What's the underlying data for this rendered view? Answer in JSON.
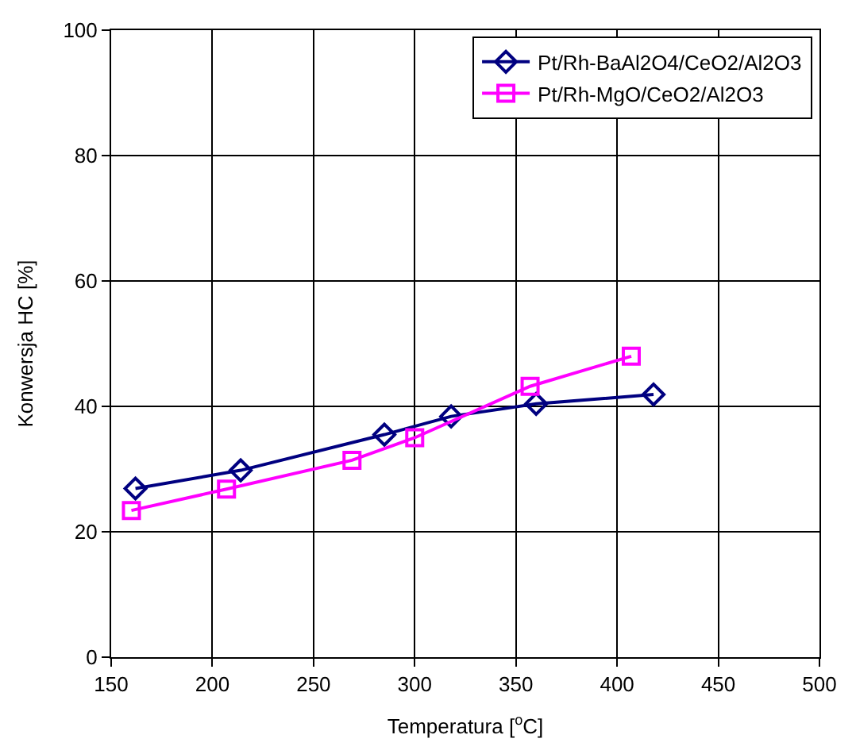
{
  "chart_data": {
    "type": "line",
    "xlabel": "Temperatura [$^{o}$C]",
    "ylabel": "Konwersja HC [%]",
    "xlim": [
      150,
      500
    ],
    "xticks": [
      150,
      200,
      250,
      300,
      350,
      400,
      450,
      500
    ],
    "ylim": [
      0,
      100
    ],
    "yticks": [
      0,
      20,
      40,
      60,
      80,
      100
    ],
    "grid": true,
    "legend": "top right",
    "series": [
      {
        "name": "Pt/Rh-BaAl2O4/CeO2/Al2O3",
        "color": "#000080",
        "marker": "diamond",
        "x": [
          162,
          214,
          285,
          318,
          360,
          418
        ],
        "values": [
          26.9,
          29.8,
          35.5,
          38.4,
          40.4,
          41.9
        ]
      },
      {
        "name": "Pt/Rh-MgO/CeO2/Al2O3",
        "color": "#ff00ff",
        "marker": "square",
        "x": [
          160,
          207,
          269,
          300,
          357,
          407
        ],
        "values": [
          23.4,
          26.8,
          31.4,
          35.0,
          43.2,
          48.0
        ]
      }
    ]
  }
}
